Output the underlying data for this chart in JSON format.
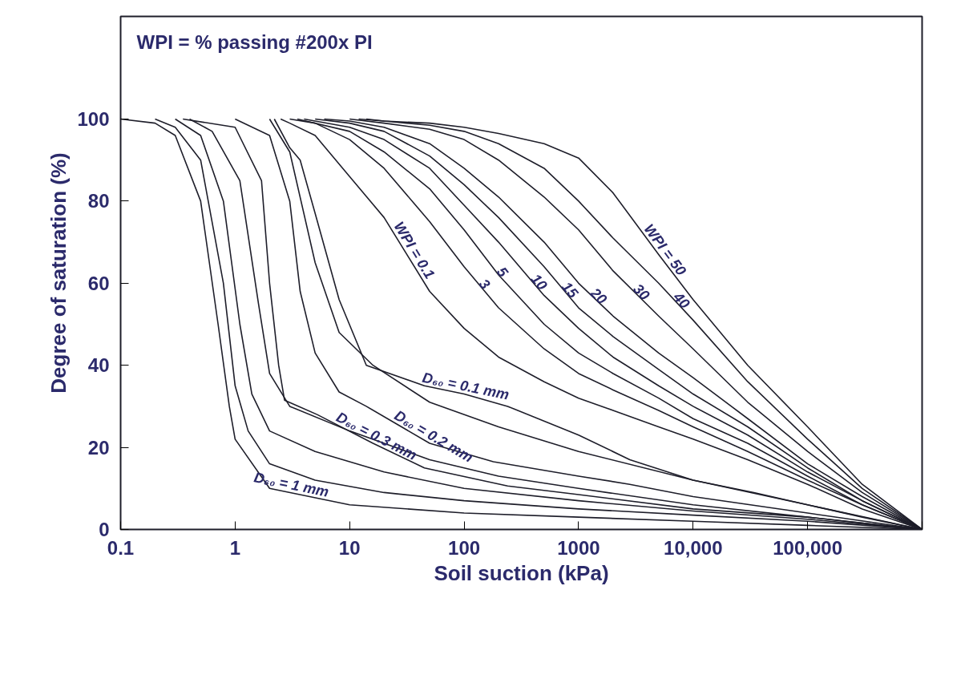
{
  "chart_data": {
    "type": "line",
    "xlabel": "Soil suction (kPa)",
    "ylabel": "Degree of saturation (%)",
    "log": "x",
    "grid": false,
    "marker": "none",
    "line_style": "solid",
    "xlim": [
      0.1,
      1000000
    ],
    "ylim": [
      0,
      125
    ],
    "xticks": [
      0.1,
      1,
      10,
      100,
      1000,
      {
        "value": 10000,
        "label": "10,000"
      },
      {
        "value": 100000,
        "label": "100,000"
      },
      {
        "value": 1000000,
        "label": null
      }
    ],
    "yticks": [
      0,
      20,
      40,
      60,
      80,
      100
    ],
    "series": [
      {
        "color": "#1e1e2a",
        "x": [
          14,
          20,
          50,
          100,
          200,
          500,
          1000,
          2000,
          5000,
          10000,
          30000,
          100000,
          300000,
          1000000
        ],
        "values": [
          100,
          99.5,
          99,
          98,
          96.5,
          94,
          90.5,
          82,
          67,
          56,
          40,
          25,
          11,
          0
        ]
      },
      {
        "color": "#1e1e2a",
        "x": [
          12,
          20,
          50,
          100,
          200,
          500,
          1000,
          2000,
          5000,
          10000,
          30000,
          100000,
          300000,
          1000000
        ],
        "values": [
          100,
          99.5,
          98.5,
          97,
          94,
          88,
          80,
          71,
          60,
          51,
          36,
          22,
          10,
          0
        ]
      },
      {
        "color": "#1e1e2a",
        "x": [
          10,
          20,
          50,
          100,
          200,
          500,
          1000,
          2000,
          5000,
          10000,
          30000,
          100000,
          300000,
          1000000
        ],
        "values": [
          100,
          99,
          97.5,
          95,
          90,
          81,
          73,
          63,
          52,
          44,
          31,
          19,
          9,
          0
        ]
      },
      {
        "color": "#1e1e2a",
        "x": [
          6,
          10,
          20,
          50,
          100,
          200,
          500,
          1000,
          2000,
          5000,
          10000,
          30000,
          100000,
          300000,
          1000000
        ],
        "values": [
          100,
          99.5,
          98,
          94,
          88,
          81,
          70,
          60,
          52,
          43,
          37,
          27,
          16,
          8,
          0
        ]
      },
      {
        "color": "#1e1e2a",
        "x": [
          5,
          10,
          20,
          50,
          100,
          200,
          500,
          1000,
          2000,
          5000,
          10000,
          30000,
          100000,
          300000,
          1000000
        ],
        "values": [
          100,
          99,
          97,
          91,
          84,
          76,
          64,
          54,
          47,
          39,
          33,
          25,
          15,
          7,
          0
        ]
      },
      {
        "color": "#1e1e2a",
        "x": [
          4,
          10,
          20,
          50,
          100,
          200,
          500,
          1000,
          2000,
          5000,
          10000,
          30000,
          100000,
          300000,
          1000000
        ],
        "values": [
          100,
          98,
          95,
          88,
          79,
          70,
          57,
          49,
          42,
          35,
          30,
          23,
          14,
          7,
          0
        ]
      },
      {
        "color": "#1e1e2a",
        "x": [
          3.5,
          10,
          20,
          50,
          100,
          200,
          500,
          1000,
          2000,
          5000,
          10000,
          30000,
          100000,
          300000,
          1000000
        ],
        "values": [
          100,
          97,
          92,
          83,
          73,
          62,
          50,
          43,
          38,
          32,
          27,
          21,
          13,
          6,
          0
        ]
      },
      {
        "color": "#1e1e2a",
        "x": [
          3,
          5,
          10,
          20,
          50,
          100,
          200,
          500,
          1000,
          2000,
          5000,
          10000,
          30000,
          100000,
          300000,
          1000000
        ],
        "values": [
          100,
          99,
          95,
          88,
          75,
          64,
          54,
          44,
          38,
          34,
          29,
          25,
          19,
          12,
          6,
          0
        ]
      },
      {
        "color": "#1e1e2a",
        "x": [
          2.5,
          3,
          5,
          10,
          20,
          50,
          100,
          200,
          500,
          1000,
          2000,
          5000,
          10000,
          30000,
          100000,
          300000,
          1000000
        ],
        "values": [
          100,
          99,
          96,
          86,
          76,
          58,
          49,
          42,
          36,
          32,
          29,
          25,
          22,
          17,
          11,
          5,
          0
        ]
      },
      {
        "color": "#1e1e2a",
        "x": [
          2.2,
          3,
          3.7,
          5,
          8.1,
          14,
          45,
          100,
          240,
          1000,
          2800,
          10000,
          34000,
          100000,
          300000,
          1000000
        ],
        "values": [
          100,
          93,
          90,
          77,
          56,
          40,
          35,
          33,
          30,
          23,
          17,
          12,
          9,
          6,
          3,
          0
        ]
      },
      {
        "color": "#1e1e2a",
        "x": [
          2,
          3,
          5,
          8.1,
          16,
          50,
          200,
          1000,
          10000,
          100000,
          1000000
        ],
        "values": [
          100,
          92,
          65,
          48,
          40,
          31,
          25,
          19,
          12,
          6,
          0
        ]
      },
      {
        "color": "#1e1e2a",
        "x": [
          1,
          2,
          3,
          3.7,
          5,
          8.1,
          14,
          50,
          180,
          1000,
          2800,
          10000,
          100000,
          1000000
        ],
        "values": [
          100,
          96,
          80,
          58,
          43,
          33.5,
          30,
          21,
          16.5,
          13,
          11,
          8,
          4,
          0
        ]
      },
      {
        "color": "#1e1e2a",
        "x": [
          0.4,
          0.63,
          1.1,
          1.6,
          2,
          3,
          10,
          50,
          200,
          1000,
          10000,
          100000,
          1000000
        ],
        "values": [
          100,
          97,
          85,
          55,
          38,
          30,
          24,
          17,
          13,
          10,
          6,
          3,
          0
        ]
      },
      {
        "color": "#1e1e2a",
        "x": [
          0.35,
          1,
          1.7,
          2,
          2.4,
          2.7,
          5.2,
          16,
          45,
          240,
          1000,
          10000,
          100000,
          1000000
        ],
        "values": [
          100,
          98,
          85,
          60,
          40,
          31.5,
          28,
          21,
          15,
          10.6,
          8.5,
          5,
          3,
          0
        ]
      },
      {
        "color": "#1e1e2a",
        "x": [
          0.3,
          0.5,
          0.79,
          1.1,
          1.4,
          2,
          5,
          20,
          100,
          1000,
          10000,
          100000,
          1000000
        ],
        "values": [
          100,
          96,
          80,
          50,
          33,
          24,
          19,
          14,
          10,
          7,
          4.5,
          2.5,
          0
        ]
      },
      {
        "color": "#1e1e2a",
        "x": [
          0.2,
          0.3,
          0.5,
          0.79,
          1,
          1.3,
          2,
          5,
          20,
          100,
          1000,
          10000,
          100000,
          1000000
        ],
        "values": [
          100,
          98,
          90,
          60,
          35,
          24,
          16,
          12,
          9,
          7,
          5,
          3.5,
          2,
          0
        ]
      },
      {
        "color": "#1e1e2a",
        "x": [
          0.1,
          0.2,
          0.3,
          0.5,
          0.71,
          0.89,
          1,
          2,
          10,
          100,
          1000,
          10000,
          100000,
          1000000
        ],
        "values": [
          100,
          99,
          96,
          80,
          50,
          30,
          22,
          10,
          6,
          4,
          3,
          2,
          1,
          0
        ]
      }
    ],
    "annotations": [
      "WPI = % passing #200x PI",
      {
        "text": "WPI = 0.1",
        "x": 32,
        "y": 67
      },
      {
        "text": "3",
        "x": 140,
        "y": 59
      },
      {
        "text": "5",
        "x": 200,
        "y": 62
      },
      {
        "text": "10",
        "x": 420,
        "y": 59.5
      },
      {
        "text": "15",
        "x": 780,
        "y": 57.6
      },
      {
        "text": "20",
        "x": 1400,
        "y": 56
      },
      {
        "text": "30",
        "x": 3300,
        "y": 57
      },
      {
        "text": "40",
        "x": 7400,
        "y": 55
      },
      {
        "text": "WPI = 50",
        "x": 5000,
        "y": 67
      },
      {
        "text": "D₆₀ = 0.1 mm",
        "x": 100,
        "y": 33
      },
      {
        "text": "D₆₀ = 0.2 mm",
        "x": 50,
        "y": 21
      },
      {
        "text": "D₆₀ = 0.3 mm",
        "x": 16,
        "y": 21
      },
      {
        "text": "D₆₀ = 1 mm",
        "x": 3,
        "y": 9
      }
    ]
  }
}
